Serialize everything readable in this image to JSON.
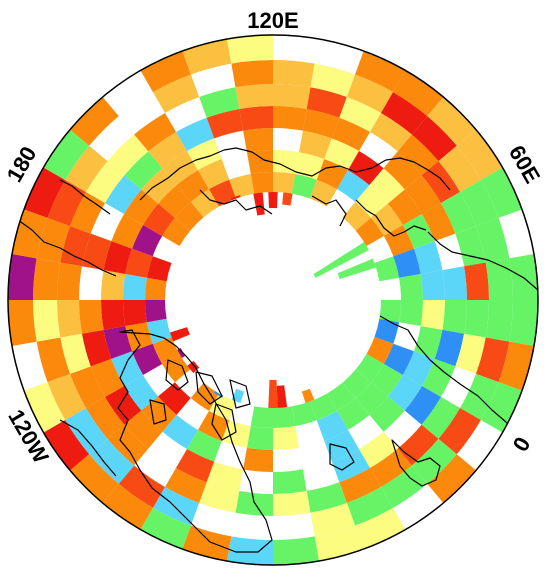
{
  "labels": {
    "top": "120E",
    "upper_right": "60E",
    "right": "0",
    "upper_left": "180",
    "lower_left": "120W"
  },
  "colors": {
    "red": "#ee1c10",
    "red_orange": "#f84a14",
    "orange": "#fb8a0c",
    "light_orange": "#fcc040",
    "yellow": "#fcfc80",
    "green": "#66f466",
    "light_blue": "#5cd6f8",
    "blue": "#2e90f4",
    "dark_blue": "#1e5cd2",
    "purple": "#a0128a",
    "coastline": "#000000",
    "background": "#ffffff"
  },
  "map": {
    "projection": "polar-stereographic",
    "pole": "north"
  }
}
